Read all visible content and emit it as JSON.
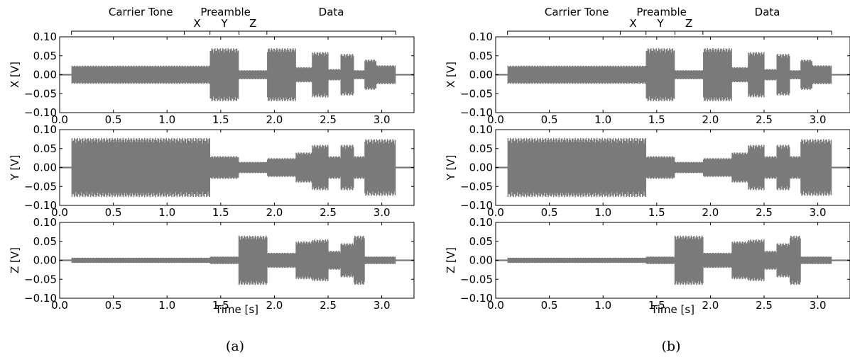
{
  "figure": {
    "captions": [
      "(a)",
      "(b)"
    ]
  },
  "colors": {
    "signal": "#7a7a7a",
    "axes": "#000000",
    "background": "#ffffff"
  },
  "segments": {
    "labels": [
      "Carrier Tone",
      "Preamble",
      "Data"
    ],
    "sub_labels": [
      "X",
      "Y",
      "Z"
    ]
  },
  "chart_data": [
    {
      "type": "line",
      "panel": "(a)",
      "xlabel": "Time [s]",
      "xlim": [
        0.0,
        3.3
      ],
      "xticks": [
        "0.0",
        "0.5",
        "1.0",
        "1.5",
        "2.0",
        "2.5",
        "3.0"
      ],
      "grid": false,
      "subplots": [
        {
          "ylabel": "X [V]",
          "ylim": [
            -0.1,
            0.1
          ],
          "yticks": [
            "0.10",
            "0.05",
            "0.00",
            "−0.05",
            "−0.10"
          ],
          "envelope": [
            {
              "from": 0.0,
              "to": 0.11,
              "amp": 0.002
            },
            {
              "from": 0.11,
              "to": 1.4,
              "amp": 0.024
            },
            {
              "from": 1.4,
              "to": 1.67,
              "amp": 0.07
            },
            {
              "from": 1.67,
              "to": 1.93,
              "amp": 0.012
            },
            {
              "from": 1.93,
              "to": 2.2,
              "amp": 0.07
            },
            {
              "from": 2.2,
              "to": 2.35,
              "amp": 0.02
            },
            {
              "from": 2.35,
              "to": 2.5,
              "amp": 0.06
            },
            {
              "from": 2.5,
              "to": 2.62,
              "amp": 0.015
            },
            {
              "from": 2.62,
              "to": 2.74,
              "amp": 0.055
            },
            {
              "from": 2.74,
              "to": 2.84,
              "amp": 0.012
            },
            {
              "from": 2.84,
              "to": 2.95,
              "amp": 0.04
            },
            {
              "from": 2.95,
              "to": 3.13,
              "amp": 0.025
            },
            {
              "from": 3.13,
              "to": 3.3,
              "amp": 0.002
            }
          ]
        },
        {
          "ylabel": "Y [V]",
          "ylim": [
            -0.1,
            0.1
          ],
          "yticks": [
            "0.10",
            "0.05",
            "0.00",
            "−0.05",
            "−0.10"
          ],
          "envelope": [
            {
              "from": 0.0,
              "to": 0.11,
              "amp": 0.002
            },
            {
              "from": 0.11,
              "to": 1.4,
              "amp": 0.078
            },
            {
              "from": 1.4,
              "to": 1.67,
              "amp": 0.03
            },
            {
              "from": 1.67,
              "to": 1.93,
              "amp": 0.015
            },
            {
              "from": 1.93,
              "to": 2.2,
              "amp": 0.025
            },
            {
              "from": 2.2,
              "to": 2.35,
              "amp": 0.04
            },
            {
              "from": 2.35,
              "to": 2.5,
              "amp": 0.06
            },
            {
              "from": 2.5,
              "to": 2.62,
              "amp": 0.03
            },
            {
              "from": 2.62,
              "to": 2.74,
              "amp": 0.06
            },
            {
              "from": 2.74,
              "to": 2.84,
              "amp": 0.03
            },
            {
              "from": 2.84,
              "to": 3.13,
              "amp": 0.075
            },
            {
              "from": 3.13,
              "to": 3.3,
              "amp": 0.002
            }
          ]
        },
        {
          "ylabel": "Z [V]",
          "ylim": [
            -0.1,
            0.1
          ],
          "yticks": [
            "0.10",
            "0.05",
            "0.00",
            "−0.05",
            "−0.10"
          ],
          "envelope": [
            {
              "from": 0.0,
              "to": 0.11,
              "amp": 0.002
            },
            {
              "from": 0.11,
              "to": 1.4,
              "amp": 0.007
            },
            {
              "from": 1.4,
              "to": 1.67,
              "amp": 0.01
            },
            {
              "from": 1.67,
              "to": 1.93,
              "amp": 0.065
            },
            {
              "from": 1.93,
              "to": 2.2,
              "amp": 0.02
            },
            {
              "from": 2.2,
              "to": 2.35,
              "amp": 0.05
            },
            {
              "from": 2.35,
              "to": 2.5,
              "amp": 0.055
            },
            {
              "from": 2.5,
              "to": 2.62,
              "amp": 0.025
            },
            {
              "from": 2.62,
              "to": 2.74,
              "amp": 0.045
            },
            {
              "from": 2.74,
              "to": 2.84,
              "amp": 0.065
            },
            {
              "from": 2.84,
              "to": 3.13,
              "amp": 0.01
            },
            {
              "from": 3.13,
              "to": 3.3,
              "amp": 0.002
            }
          ]
        }
      ]
    },
    {
      "type": "line",
      "panel": "(b)",
      "xlabel": "Time [s]",
      "xlim": [
        0.0,
        3.3
      ],
      "xticks": [
        "0.0",
        "0.5",
        "1.0",
        "1.5",
        "2.0",
        "2.5",
        "3.0"
      ],
      "grid": false,
      "subplots": [
        {
          "ylabel": "X [V]",
          "ylim": [
            -0.1,
            0.1
          ],
          "yticks": [
            "0.10",
            "0.05",
            "0.00",
            "−0.05",
            "−0.10"
          ],
          "envelope": [
            {
              "from": 0.0,
              "to": 0.11,
              "amp": 0.002
            },
            {
              "from": 0.11,
              "to": 1.4,
              "amp": 0.024
            },
            {
              "from": 1.4,
              "to": 1.67,
              "amp": 0.07
            },
            {
              "from": 1.67,
              "to": 1.93,
              "amp": 0.012
            },
            {
              "from": 1.93,
              "to": 2.2,
              "amp": 0.07
            },
            {
              "from": 2.2,
              "to": 2.35,
              "amp": 0.02
            },
            {
              "from": 2.35,
              "to": 2.5,
              "amp": 0.06
            },
            {
              "from": 2.5,
              "to": 2.62,
              "amp": 0.015
            },
            {
              "from": 2.62,
              "to": 2.74,
              "amp": 0.055
            },
            {
              "from": 2.74,
              "to": 2.84,
              "amp": 0.012
            },
            {
              "from": 2.84,
              "to": 2.95,
              "amp": 0.04
            },
            {
              "from": 2.95,
              "to": 3.13,
              "amp": 0.025
            },
            {
              "from": 3.13,
              "to": 3.3,
              "amp": 0.002
            }
          ]
        },
        {
          "ylabel": "Y [V]",
          "ylim": [
            -0.1,
            0.1
          ],
          "yticks": [
            "0.10",
            "0.05",
            "0.00",
            "−0.05",
            "−0.10"
          ],
          "envelope": [
            {
              "from": 0.0,
              "to": 0.11,
              "amp": 0.002
            },
            {
              "from": 0.11,
              "to": 1.4,
              "amp": 0.078
            },
            {
              "from": 1.4,
              "to": 1.67,
              "amp": 0.03
            },
            {
              "from": 1.67,
              "to": 1.93,
              "amp": 0.015
            },
            {
              "from": 1.93,
              "to": 2.2,
              "amp": 0.025
            },
            {
              "from": 2.2,
              "to": 2.35,
              "amp": 0.04
            },
            {
              "from": 2.35,
              "to": 2.5,
              "amp": 0.06
            },
            {
              "from": 2.5,
              "to": 2.62,
              "amp": 0.03
            },
            {
              "from": 2.62,
              "to": 2.74,
              "amp": 0.06
            },
            {
              "from": 2.74,
              "to": 2.84,
              "amp": 0.03
            },
            {
              "from": 2.84,
              "to": 3.13,
              "amp": 0.075
            },
            {
              "from": 3.13,
              "to": 3.3,
              "amp": 0.002
            }
          ]
        },
        {
          "ylabel": "Z [V]",
          "ylim": [
            -0.1,
            0.1
          ],
          "yticks": [
            "0.10",
            "0.05",
            "0.00",
            "−0.05",
            "−0.10"
          ],
          "envelope": [
            {
              "from": 0.0,
              "to": 0.11,
              "amp": 0.002
            },
            {
              "from": 0.11,
              "to": 1.4,
              "amp": 0.007
            },
            {
              "from": 1.4,
              "to": 1.67,
              "amp": 0.01
            },
            {
              "from": 1.67,
              "to": 1.93,
              "amp": 0.065
            },
            {
              "from": 1.93,
              "to": 2.2,
              "amp": 0.02
            },
            {
              "from": 2.2,
              "to": 2.35,
              "amp": 0.05
            },
            {
              "from": 2.35,
              "to": 2.5,
              "amp": 0.055
            },
            {
              "from": 2.5,
              "to": 2.62,
              "amp": 0.025
            },
            {
              "from": 2.62,
              "to": 2.74,
              "amp": 0.045
            },
            {
              "from": 2.74,
              "to": 2.84,
              "amp": 0.065
            },
            {
              "from": 2.84,
              "to": 3.13,
              "amp": 0.01
            },
            {
              "from": 3.13,
              "to": 3.3,
              "amp": 0.002
            }
          ]
        }
      ]
    }
  ]
}
